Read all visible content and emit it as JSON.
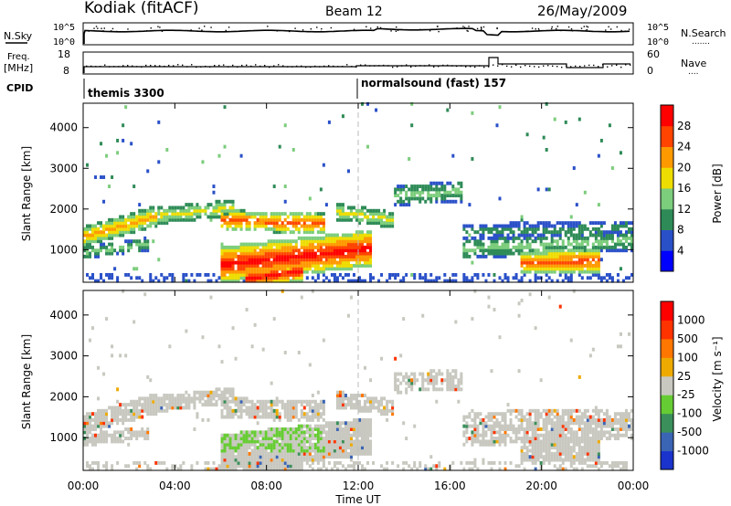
{
  "header": {
    "station": "Kodiak (fitACF)",
    "beam": "Beam 12",
    "date": "26/May/2009"
  },
  "panel_labels": {
    "nsky": "N.Sky",
    "nsearch": "N.Search",
    "nsearch_dots": ".......",
    "freq": "Freq.",
    "freq_unit": "[MHz]",
    "nave": "Nave",
    "nave_dots": "....",
    "cpid": "CPID",
    "cpid_1": "themis 3300",
    "cpid_2": "normalsound (fast) 157",
    "nsky_tick_hi": "10^5",
    "nsky_tick_lo": "10^0",
    "nsearch_tick_hi": "10^5",
    "nsearch_tick_lo": "10^0",
    "freq_tick_hi": "18",
    "freq_tick_lo": "8",
    "nave_tick_hi": "60",
    "nave_tick_lo": "0"
  },
  "chart_data": [
    {
      "type": "heatmap",
      "name": "power",
      "ylabel": "Slant Range [km]",
      "yticks": [
        "1000",
        "2000",
        "3000",
        "4000"
      ],
      "ylim": [
        200,
        4600
      ],
      "xlim_hours": [
        0,
        24
      ],
      "colorbar": {
        "label": "Power [dB]",
        "ticks": [
          "4",
          "8",
          "12",
          "16",
          "20",
          "24",
          "28"
        ],
        "colors": [
          "#0000ff",
          "#2a50c8",
          "#2e8b57",
          "#7ccd7c",
          "#eedd00",
          "#ff9900",
          "#ff4400",
          "#ff0000"
        ]
      }
    },
    {
      "type": "heatmap",
      "name": "velocity",
      "ylabel": "Slant Range [km]",
      "yticks": [
        "1000",
        "2000",
        "3000",
        "4000"
      ],
      "ylim": [
        200,
        4600
      ],
      "xlim_hours": [
        0,
        24
      ],
      "xlabel": "Time UT",
      "xticks": [
        "00:00",
        "04:00",
        "08:00",
        "12:00",
        "16:00",
        "20:00",
        "00:00"
      ],
      "colorbar": {
        "label": "Velocity [m s⁻¹]",
        "ticks": [
          "1000",
          "500",
          "100",
          "25",
          "-25",
          "-100",
          "-500",
          "-1000"
        ],
        "colors": [
          "#1a33cc",
          "#3a64b4",
          "#3a8f5a",
          "#66cc33",
          "#c8c8c0",
          "#eeaa00",
          "#ff7700",
          "#ff3300",
          "#ff0000"
        ]
      }
    }
  ]
}
